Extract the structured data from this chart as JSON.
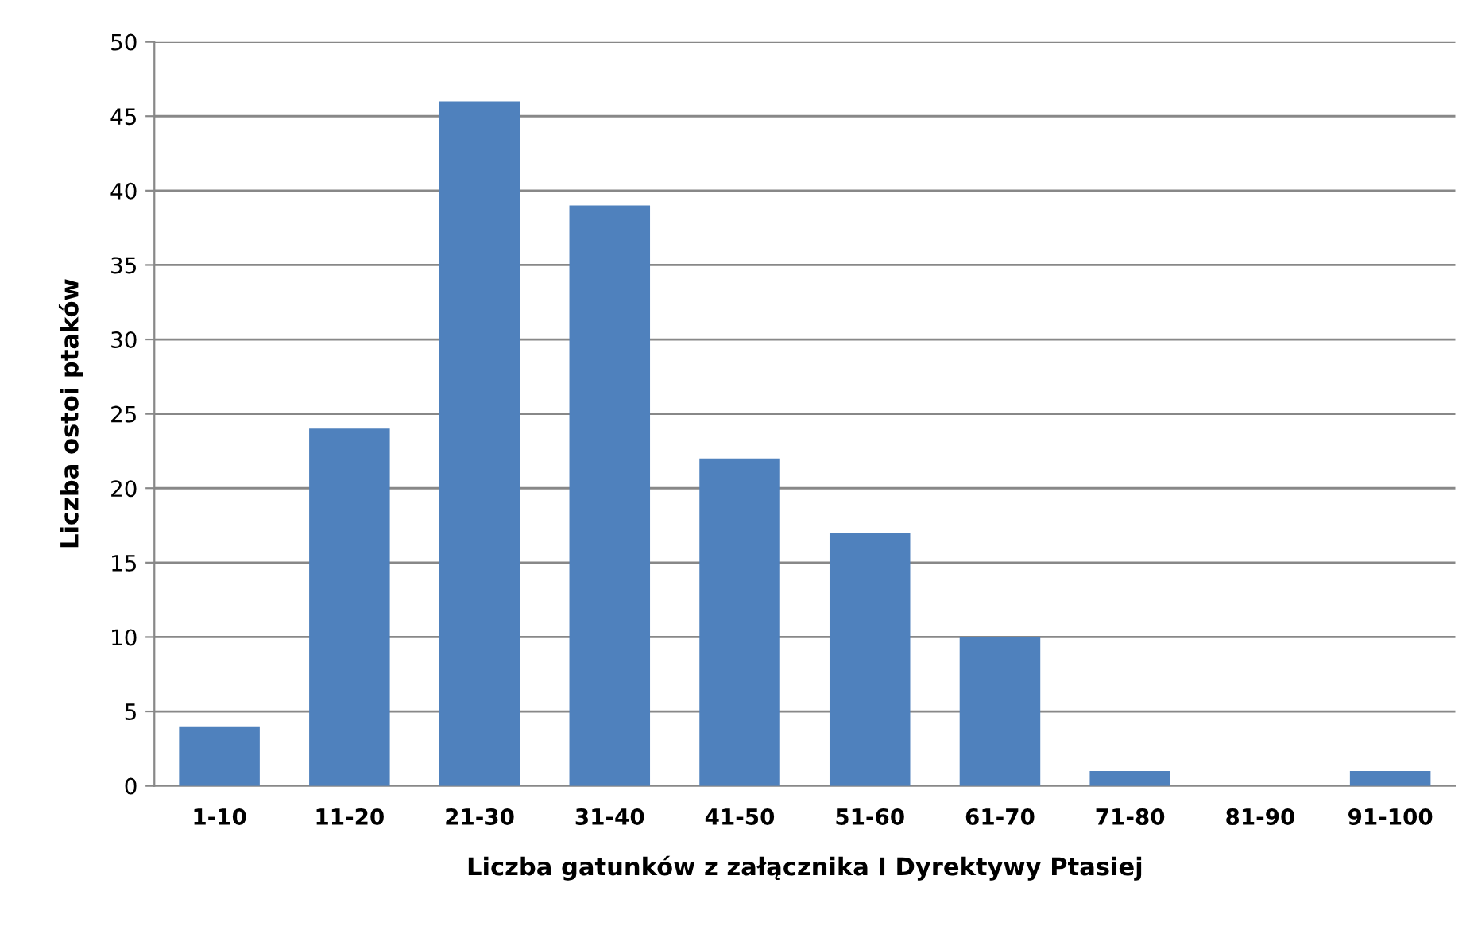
{
  "chart_data": {
    "type": "bar",
    "xlabel": "Liczba gatunków z załącznika I Dyrektywy Ptasiej",
    "ylabel": "Liczba ostoi ptaków",
    "categories": [
      "1-10",
      "11-20",
      "21-30",
      "31-40",
      "41-50",
      "51-60",
      "61-70",
      "71-80",
      "81-90",
      "91-100"
    ],
    "values": [
      4,
      24,
      46,
      39,
      22,
      17,
      10,
      1,
      0,
      1
    ],
    "color": "#4f81bd",
    "ylim": [
      0,
      50
    ],
    "yticks": [
      0,
      5,
      10,
      15,
      20,
      25,
      30,
      35,
      40,
      45,
      50
    ],
    "grid": "y",
    "legend": false
  }
}
